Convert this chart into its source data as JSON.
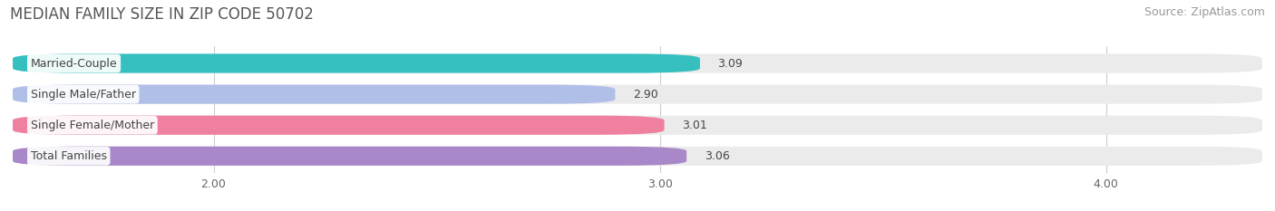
{
  "title": "MEDIAN FAMILY SIZE IN ZIP CODE 50702",
  "source": "Source: ZipAtlas.com",
  "categories": [
    "Married-Couple",
    "Single Male/Father",
    "Single Female/Mother",
    "Total Families"
  ],
  "values": [
    3.09,
    2.9,
    3.01,
    3.06
  ],
  "bar_colors": [
    "#35bfbf",
    "#b0bfe8",
    "#f080a0",
    "#a888c8"
  ],
  "background_color": "#ffffff",
  "bar_bg_color": "#ebebeb",
  "xlim_min": 1.55,
  "xlim_max": 4.35,
  "xticks": [
    2.0,
    3.0,
    4.0
  ],
  "xtick_labels": [
    "2.00",
    "3.00",
    "4.00"
  ],
  "title_fontsize": 12,
  "source_fontsize": 9,
  "label_fontsize": 9,
  "value_fontsize": 9,
  "tick_fontsize": 9
}
